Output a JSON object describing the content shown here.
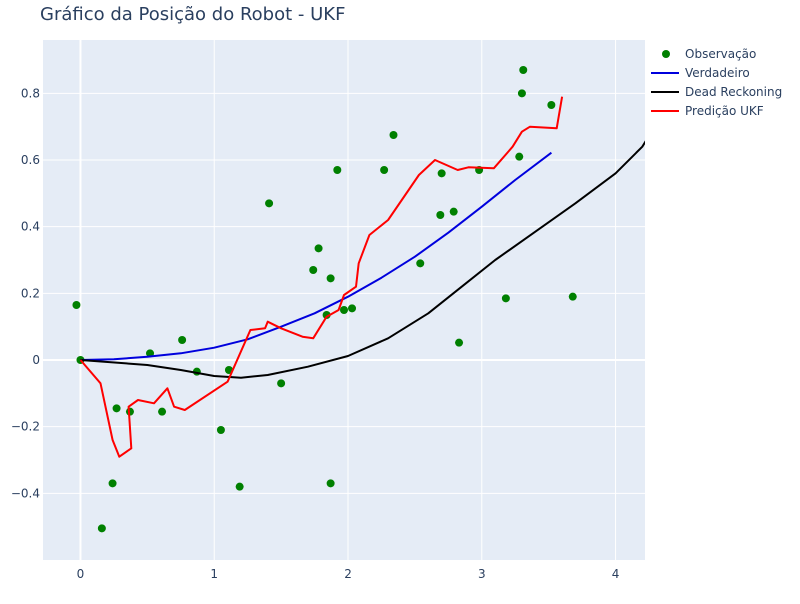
{
  "chart_data": {
    "type": "line",
    "title": "Gráfico da Posição do Robot - UKF",
    "xlim": [
      -0.28,
      4.22
    ],
    "ylim": [
      -0.6,
      0.96
    ],
    "xticks": [
      0,
      1,
      2,
      3,
      4
    ],
    "yticks": [
      -0.4,
      -0.2,
      0,
      0.2,
      0.4,
      0.6,
      0.8
    ],
    "xtick_labels": [
      "0",
      "1",
      "2",
      "3",
      "4"
    ],
    "ytick_labels": [
      "−0.4",
      "−0.2",
      "0",
      "0.2",
      "0.4",
      "0.6",
      "0.8"
    ],
    "background": "#e5ecf6",
    "grid": true,
    "legend_position": "top-right",
    "series": [
      {
        "name": "Observação",
        "mode": "markers",
        "color": "#008000",
        "points": [
          [
            -0.03,
            0.165
          ],
          [
            0.0,
            0.0
          ],
          [
            0.16,
            -0.505
          ],
          [
            0.24,
            -0.37
          ],
          [
            0.27,
            -0.145
          ],
          [
            0.37,
            -0.155
          ],
          [
            0.52,
            0.02
          ],
          [
            0.61,
            -0.155
          ],
          [
            0.76,
            0.06
          ],
          [
            0.87,
            -0.035
          ],
          [
            1.05,
            -0.21
          ],
          [
            1.11,
            -0.03
          ],
          [
            1.19,
            -0.38
          ],
          [
            1.41,
            0.47
          ],
          [
            1.5,
            -0.07
          ],
          [
            1.74,
            0.27
          ],
          [
            1.78,
            0.335
          ],
          [
            1.84,
            0.135
          ],
          [
            1.87,
            0.245
          ],
          [
            1.87,
            -0.37
          ],
          [
            1.92,
            0.57
          ],
          [
            1.97,
            0.15
          ],
          [
            2.03,
            0.155
          ],
          [
            2.27,
            0.57
          ],
          [
            2.34,
            0.675
          ],
          [
            2.54,
            0.29
          ],
          [
            2.69,
            0.435
          ],
          [
            2.7,
            0.56
          ],
          [
            2.79,
            0.445
          ],
          [
            2.83,
            0.052
          ],
          [
            2.98,
            0.57
          ],
          [
            3.18,
            0.185
          ],
          [
            3.28,
            0.61
          ],
          [
            3.3,
            0.8
          ],
          [
            3.31,
            0.87
          ],
          [
            3.52,
            0.765
          ],
          [
            3.68,
            0.19
          ]
        ]
      },
      {
        "name": "Verdadeiro",
        "mode": "lines",
        "color": "#0000dd",
        "points": [
          [
            0,
            0
          ],
          [
            0.25,
            0.002
          ],
          [
            0.5,
            0.01
          ],
          [
            0.75,
            0.02
          ],
          [
            1.0,
            0.037
          ],
          [
            1.25,
            0.062
          ],
          [
            1.5,
            0.1
          ],
          [
            1.75,
            0.14
          ],
          [
            2.0,
            0.19
          ],
          [
            2.25,
            0.247
          ],
          [
            2.5,
            0.31
          ],
          [
            2.75,
            0.382
          ],
          [
            3.0,
            0.46
          ],
          [
            3.25,
            0.54
          ],
          [
            3.52,
            0.622
          ]
        ]
      },
      {
        "name": "Dead Reckoning",
        "mode": "lines",
        "color": "#000000",
        "points": [
          [
            0,
            0
          ],
          [
            0.5,
            -0.015
          ],
          [
            0.75,
            -0.03
          ],
          [
            1.0,
            -0.048
          ],
          [
            1.2,
            -0.053
          ],
          [
            1.4,
            -0.045
          ],
          [
            1.7,
            -0.02
          ],
          [
            2.0,
            0.012
          ],
          [
            2.3,
            0.065
          ],
          [
            2.6,
            0.14
          ],
          [
            2.85,
            0.22
          ],
          [
            3.1,
            0.3
          ],
          [
            3.4,
            0.385
          ],
          [
            3.7,
            0.47
          ],
          [
            4.0,
            0.56
          ],
          [
            4.2,
            0.64
          ],
          [
            4.3,
            0.705
          ]
        ]
      },
      {
        "name": "Predição UKF",
        "mode": "lines",
        "color": "#ff0000",
        "points": [
          [
            0,
            0
          ],
          [
            0.15,
            -0.07
          ],
          [
            0.24,
            -0.24
          ],
          [
            0.29,
            -0.29
          ],
          [
            0.38,
            -0.265
          ],
          [
            0.36,
            -0.14
          ],
          [
            0.43,
            -0.12
          ],
          [
            0.55,
            -0.13
          ],
          [
            0.65,
            -0.085
          ],
          [
            0.7,
            -0.14
          ],
          [
            0.78,
            -0.15
          ],
          [
            1.1,
            -0.065
          ],
          [
            1.27,
            0.09
          ],
          [
            1.38,
            0.095
          ],
          [
            1.4,
            0.115
          ],
          [
            1.5,
            0.095
          ],
          [
            1.66,
            0.07
          ],
          [
            1.74,
            0.065
          ],
          [
            1.84,
            0.13
          ],
          [
            1.93,
            0.15
          ],
          [
            1.97,
            0.195
          ],
          [
            2.06,
            0.22
          ],
          [
            2.08,
            0.29
          ],
          [
            2.16,
            0.375
          ],
          [
            2.3,
            0.42
          ],
          [
            2.53,
            0.555
          ],
          [
            2.65,
            0.6
          ],
          [
            2.82,
            0.57
          ],
          [
            2.9,
            0.578
          ],
          [
            3.09,
            0.575
          ],
          [
            3.23,
            0.64
          ],
          [
            3.3,
            0.685
          ],
          [
            3.36,
            0.7
          ],
          [
            3.56,
            0.695
          ],
          [
            3.6,
            0.79
          ]
        ]
      }
    ]
  }
}
